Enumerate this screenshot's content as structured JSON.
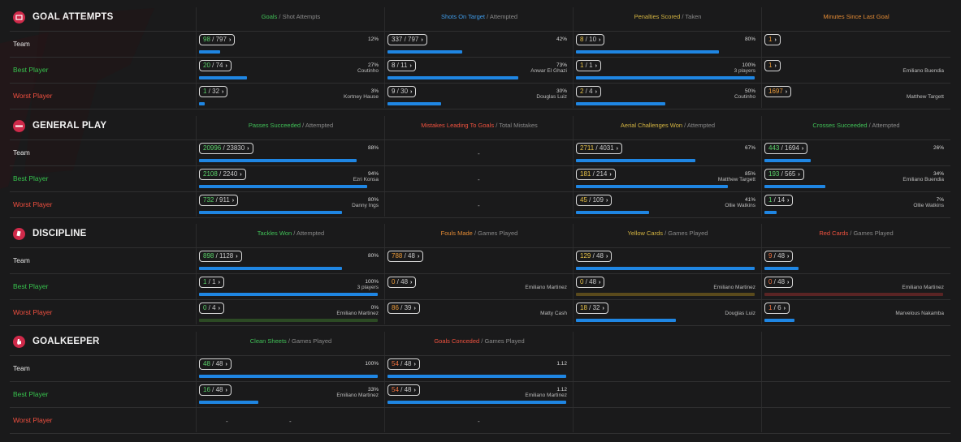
{
  "sections": [
    {
      "key": "goal",
      "title": "GOAL ATTEMPTS",
      "icon": "goal-icon",
      "columns": [
        {
          "a": "Goals",
          "b": " / Shot Attempts",
          "color": "green"
        },
        {
          "a": "Shots On Target",
          "b": " / Attempted",
          "color": "blue"
        },
        {
          "a": "Penalties Scored",
          "b": " / Taken",
          "color": "yellow"
        },
        {
          "a": "Minutes Since Last Goal",
          "b": "",
          "color": "orange"
        }
      ],
      "rows": [
        {
          "label": "Team",
          "cells": [
            {
              "n": "98",
              "d": "797",
              "pct": "12%",
              "sub": "",
              "bar": 0.12
            },
            {
              "n": "337",
              "d": "797",
              "pct": "42%",
              "sub": "",
              "bar": 0.42
            },
            {
              "n": "8",
              "d": "10",
              "pct": "80%",
              "sub": "",
              "bar": 0.8
            },
            {
              "n": "1",
              "d": "",
              "pct": "",
              "sub": "",
              "bar": null
            }
          ]
        },
        {
          "label": "Best Player",
          "cells": [
            {
              "n": "20",
              "d": "74",
              "pct": "27%",
              "sub": "Coutinho",
              "bar": 0.27
            },
            {
              "n": "8",
              "d": "11",
              "pct": "73%",
              "sub": "Anwar El Ghazi",
              "bar": 0.73
            },
            {
              "n": "1",
              "d": "1",
              "pct": "100%",
              "sub": "3 players",
              "bar": 1.0
            },
            {
              "n": "1",
              "d": "",
              "pct": "",
              "sub": "Emiliano Buendia",
              "bar": null
            }
          ]
        },
        {
          "label": "Worst Player",
          "cells": [
            {
              "n": "1",
              "d": "32",
              "pct": "3%",
              "sub": "Kortney Hause",
              "bar": 0.03
            },
            {
              "n": "9",
              "d": "30",
              "pct": "30%",
              "sub": "Douglas Luiz",
              "bar": 0.3
            },
            {
              "n": "2",
              "d": "4",
              "pct": "50%",
              "sub": "Coutinho",
              "bar": 0.5
            },
            {
              "n": "1697",
              "d": "",
              "pct": "",
              "sub": "Matthew Targett",
              "bar": null
            }
          ]
        }
      ]
    },
    {
      "key": "general",
      "title": "GENERAL PLAY",
      "icon": "ball-icon",
      "columns": [
        {
          "a": "Passes Succeeded",
          "b": " / Attempted",
          "color": "green"
        },
        {
          "a": "Mistakes Leading To Goals",
          "b": " / Total Mistakes",
          "color": "red"
        },
        {
          "a": "Aerial Challenges Won",
          "b": " / Attempted",
          "color": "yellow"
        },
        {
          "a": "Crosses Succeeded",
          "b": " / Attempted",
          "color": "green"
        }
      ],
      "rows": [
        {
          "label": "Team",
          "cells": [
            {
              "n": "20996",
              "d": "23830",
              "pct": "88%",
              "sub": "",
              "bar": 0.88
            },
            {
              "dash": "-"
            },
            {
              "n": "2711",
              "d": "4031",
              "pct": "67%",
              "sub": "",
              "bar": 0.67
            },
            {
              "n": "443",
              "d": "1694",
              "pct": "26%",
              "sub": "",
              "bar": 0.26
            }
          ]
        },
        {
          "label": "Best Player",
          "cells": [
            {
              "n": "2108",
              "d": "2240",
              "pct": "94%",
              "sub": "Ezri Konsa",
              "bar": 0.94
            },
            {
              "dash": "-"
            },
            {
              "n": "181",
              "d": "214",
              "pct": "85%",
              "sub": "Matthew Targett",
              "bar": 0.85
            },
            {
              "n": "193",
              "d": "565",
              "pct": "34%",
              "sub": "Emiliano Buendia",
              "bar": 0.34
            }
          ]
        },
        {
          "label": "Worst Player",
          "cells": [
            {
              "n": "732",
              "d": "911",
              "pct": "80%",
              "sub": "Danny Ings",
              "bar": 0.8
            },
            {
              "dash": "-"
            },
            {
              "n": "45",
              "d": "109",
              "pct": "41%",
              "sub": "Ollie Watkins",
              "bar": 0.41
            },
            {
              "n": "1",
              "d": "14",
              "pct": "7%",
              "sub": "Ollie Watkins",
              "bar": 0.07
            }
          ]
        }
      ]
    },
    {
      "key": "discipline",
      "title": "DISCIPLINE",
      "icon": "card-icon",
      "columns": [
        {
          "a": "Tackles Won",
          "b": " / Attempted",
          "color": "green"
        },
        {
          "a": "Fouls Made",
          "b": " / Games Played",
          "color": "orange"
        },
        {
          "a": "Yellow Cards",
          "b": " / Games Played",
          "color": "yellow"
        },
        {
          "a": "Red Cards",
          "b": " / Games Played",
          "color": "red"
        }
      ],
      "rows": [
        {
          "label": "Team",
          "cells": [
            {
              "n": "898",
              "d": "1128",
              "pct": "80%",
              "sub": "",
              "bar": 0.8
            },
            {
              "n": "788",
              "d": "48",
              "pct": "",
              "sub": "",
              "bar": null
            },
            {
              "n": "129",
              "d": "48",
              "pct": "",
              "sub": "",
              "bar": 1.0
            },
            {
              "n": "9",
              "d": "48",
              "pct": "",
              "sub": "",
              "bar": 0.19
            }
          ]
        },
        {
          "label": "Best Player",
          "cells": [
            {
              "n": "1",
              "d": "1",
              "pct": "100%",
              "sub": "3 players",
              "bar": 1.0
            },
            {
              "n": "0",
              "d": "48",
              "pct": "",
              "sub": "Emiliano Martinez",
              "bar": null
            },
            {
              "n": "0",
              "d": "48",
              "pct": "",
              "sub": "Emiliano Martinez",
              "bar": 0,
              "track": "#5a4a1c"
            },
            {
              "n": "0",
              "d": "48",
              "pct": "",
              "sub": "Emiliano Martinez",
              "bar": 0,
              "track": "#5a2424"
            }
          ]
        },
        {
          "label": "Worst Player",
          "cells": [
            {
              "n": "0",
              "d": "4",
              "pct": "0%",
              "sub": "Emiliano Martinez",
              "bar": 0,
              "track": "#2c4a24"
            },
            {
              "n": "86",
              "d": "39",
              "pct": "",
              "sub": "Matty Cash",
              "bar": null
            },
            {
              "n": "18",
              "d": "32",
              "pct": "",
              "sub": "Douglas Luiz",
              "bar": 0.56
            },
            {
              "n": "1",
              "d": "6",
              "pct": "",
              "sub": "Marvelous Nakamba",
              "bar": 0.17
            }
          ]
        }
      ]
    },
    {
      "key": "gk",
      "title": "GOALKEEPER",
      "icon": "glove-icon",
      "columns": [
        {
          "a": "Clean Sheets",
          "b": " / Games Played",
          "color": "green"
        },
        {
          "a": "Goals Conceded",
          "b": " / Games Played",
          "color": "red"
        }
      ],
      "rows": [
        {
          "label": "Team",
          "cells": [
            {
              "n": "48",
              "d": "48",
              "pct": "100%",
              "sub": "",
              "bar": 1.0
            },
            {
              "n": "54",
              "d": "48",
              "pct": "1.12",
              "sub": "",
              "bar": 1.0
            }
          ]
        },
        {
          "label": "Best Player",
          "cells": [
            {
              "n": "16",
              "d": "48",
              "pct": "33%",
              "sub": "Emiliano Martinez",
              "bar": 0.33
            },
            {
              "n": "54",
              "d": "48",
              "pct": "1.12",
              "sub": "Emiliano Martinez",
              "bar": 1.0
            }
          ]
        },
        {
          "label": "Worst Player",
          "cells": [
            {
              "dash": "-",
              "dash2": "-"
            },
            {
              "dash": "-"
            }
          ]
        }
      ]
    }
  ]
}
